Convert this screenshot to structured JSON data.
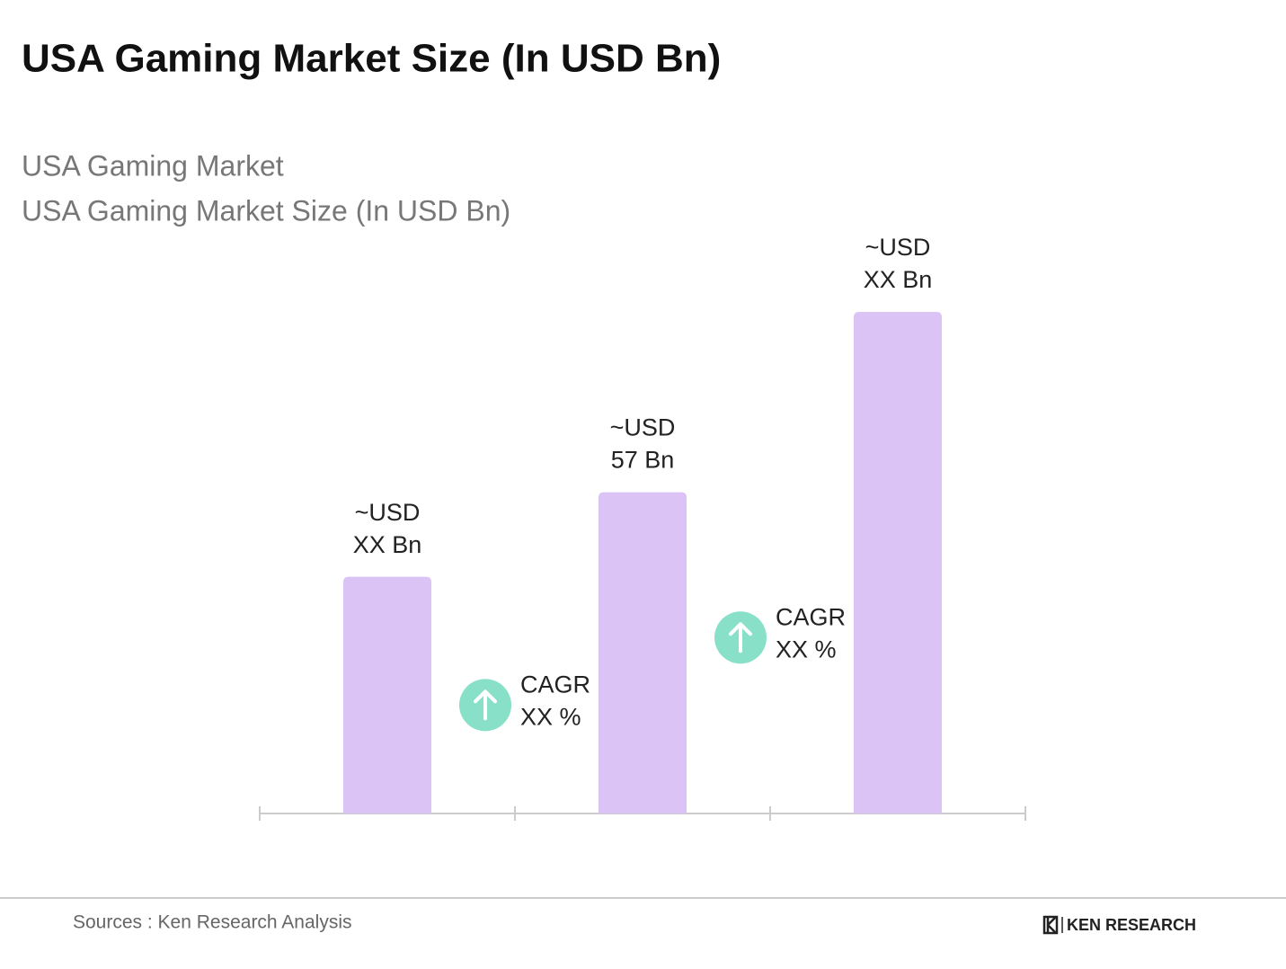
{
  "chart_data": {
    "type": "bar",
    "title": "USA Gaming Market Size (In USD Bn)",
    "subtitle": [
      "USA Gaming Market",
      "USA Gaming Market Size (In USD Bn)"
    ],
    "categories": [
      null,
      null,
      null
    ],
    "values": [
      42,
      57,
      89
    ],
    "value_labels": [
      [
        "~USD",
        "XX Bn"
      ],
      [
        "~USD",
        "57 Bn"
      ],
      [
        "~USD",
        "XX Bn"
      ]
    ],
    "color": "#dcc3f5",
    "ylim": [
      0,
      100
    ],
    "annotations": [
      [
        "CAGR",
        "XX %"
      ],
      [
        "CAGR",
        "XX %"
      ]
    ],
    "annotation_color": "#88e0c8",
    "source": "Sources : Ken Research Analysis",
    "brand": "KEN RESEARCH"
  }
}
